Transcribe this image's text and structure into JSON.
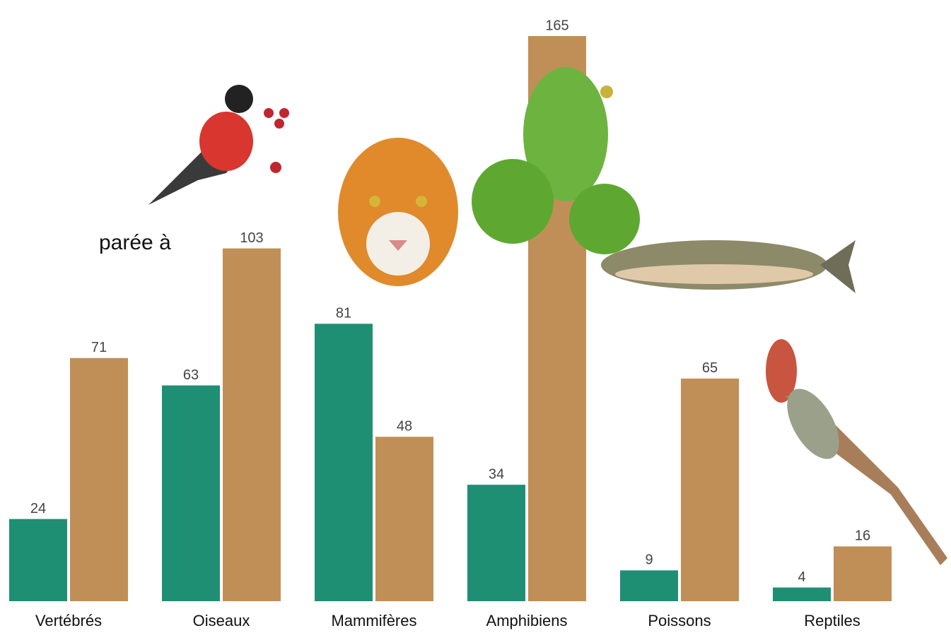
{
  "chart_data": {
    "type": "bar",
    "annotation": "parée à",
    "categories": [
      "Vertébrés",
      "Oiseaux",
      "Mammifères",
      "Amphibiens",
      "Poissons",
      "Reptiles"
    ],
    "series": [
      {
        "color": "#1f8f74",
        "values": [
          24,
          63,
          81,
          34,
          9,
          4
        ]
      },
      {
        "color": "#c08f57",
        "values": [
          71,
          103,
          48,
          165,
          65,
          16
        ]
      }
    ],
    "ylim": [
      0,
      165
    ]
  }
}
